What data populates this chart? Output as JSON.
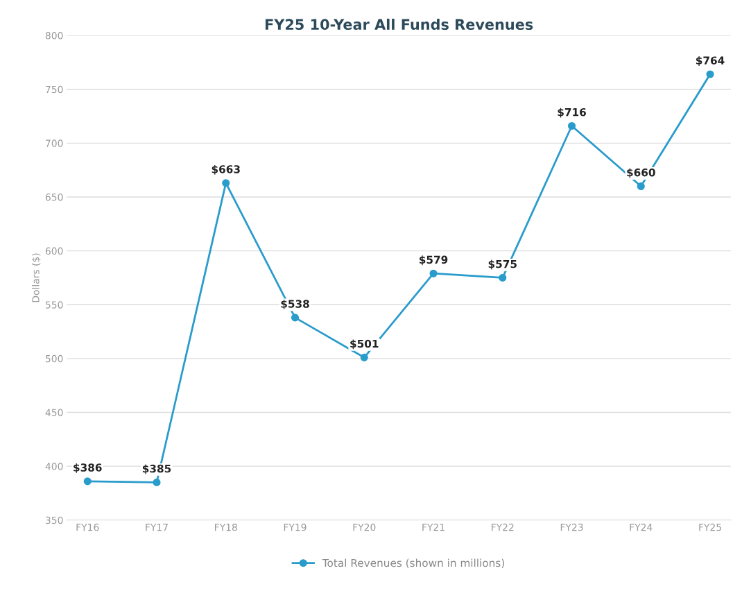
{
  "chart_data": {
    "type": "line",
    "title": "FY25 10-Year All Funds Revenues",
    "ylabel": "Dollars ($)",
    "categories": [
      "FY16",
      "FY17",
      "FY18",
      "FY19",
      "FY20",
      "FY21",
      "FY22",
      "FY23",
      "FY24",
      "FY25"
    ],
    "series": [
      {
        "name": "Total Revenues (shown in millions)",
        "color": "#2a9ccc",
        "values": [
          386,
          385,
          663,
          538,
          501,
          579,
          575,
          716,
          660,
          764
        ],
        "value_labels": [
          "$386",
          "$385",
          "$663",
          "$538",
          "$501",
          "$579",
          "$575",
          "$716",
          "$660",
          "$764"
        ]
      }
    ],
    "ylim": [
      350,
      800
    ],
    "yticks": [
      350,
      400,
      450,
      500,
      550,
      600,
      650,
      700,
      750,
      800
    ],
    "grid": "y",
    "legend": "bottom",
    "marker": "circle",
    "line_style": "solid"
  }
}
